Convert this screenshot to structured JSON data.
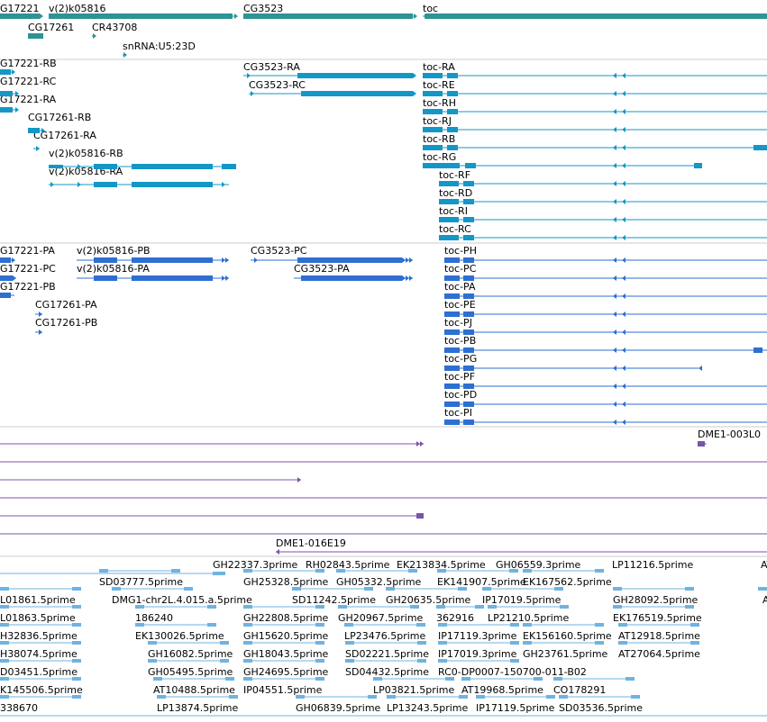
{
  "colors": {
    "gene": "#2e9394",
    "cdna": "#1497c6",
    "protein": "#2e6fd0",
    "est": "#7b54a8",
    "cdna_est": "#6fb3e0",
    "divider": "#cccccc"
  },
  "gene_track": [
    {
      "label": "G17221",
      "icon": "gene-arrow"
    },
    {
      "label": "v(2)k05816",
      "icon": "gene-arrow"
    },
    {
      "label": "CG3523",
      "icon": "gene-arrow"
    },
    {
      "label": "toc",
      "icon": "gene-arrow"
    },
    {
      "label": "CG17261",
      "icon": "gene-arrow"
    },
    {
      "label": "CR43708",
      "icon": "gene-arrow"
    },
    {
      "label": "snRNA:U5:23D",
      "icon": "gene-arrow"
    }
  ],
  "transcript_track": [
    "G17221-RB",
    "G17221-RC",
    "G17221-RA",
    "CG17261-RB",
    "CG17261-RA",
    "v(2)k05816-RB",
    "v(2)k05816-RA",
    "CG3523-RA",
    "CG3523-RC",
    "toc-RA",
    "toc-RE",
    "toc-RH",
    "toc-RJ",
    "toc-RB",
    "toc-RG",
    "toc-RF",
    "toc-RD",
    "toc-RI",
    "toc-RC"
  ],
  "protein_track": [
    "G17221-PA",
    "G17221-PC",
    "G17221-PB",
    "CG17261-PA",
    "CG17261-PB",
    "v(2)k05816-PB",
    "v(2)k05816-PA",
    "CG3523-PC",
    "CG3523-PA",
    "toc-PH",
    "toc-PC",
    "toc-PA",
    "toc-PE",
    "toc-PJ",
    "toc-PB",
    "toc-PG",
    "toc-PF",
    "toc-PD",
    "toc-PI"
  ],
  "est_track": [
    "DME1-003L0",
    "DME1-016E19"
  ],
  "cdna_est_track": [
    "GH22337.3prime",
    "RH02843.5prime",
    "EK213834.5prime",
    "GH06559.3prime",
    "LP11216.5prime",
    "AT",
    "SD03777.5prime",
    "GH25328.5prime",
    "GH05332.5prime",
    "EK141907.5prime",
    "EK167562.5prime",
    "L01861.5prime",
    "DMG1-chr2L.4.015.a.5prime",
    "SD11242.5prime",
    "GH20635.5prime",
    "IP17019.5prime",
    "GH28092.5prime",
    "A",
    "L01863.5prime",
    "186240",
    "GH22808.5prime",
    "GH20967.5prime",
    "362916",
    "LP21210.5prime",
    "EK176519.5prime",
    "H32836.5prime",
    "EK130026.5prime",
    "GH15620.5prime",
    "LP23476.5prime",
    "IP17119.3prime",
    "EK156160.5prime",
    "AT12918.5prime",
    "H38074.5prime",
    "GH16082.5prime",
    "GH18043.5prime",
    "SD02221.5prime",
    "IP17019.3prime",
    "GH23761.5prime",
    "AT27064.5prime",
    "D03451.5prime",
    "GH05495.5prime",
    "GH24695.5prime",
    "SD04432.5prime",
    "RC0-DP0007-150700-011-B02",
    "K145506.5prime",
    "AT10488.5prime",
    "IP04551.5prime",
    "LP03821.5prime",
    "AT19968.5prime",
    "CO178291",
    "338670",
    "LP13874.5prime",
    "GH06839.5prime",
    "LP13243.5prime",
    "IP17119.5prime",
    "SD03536.5prime"
  ]
}
